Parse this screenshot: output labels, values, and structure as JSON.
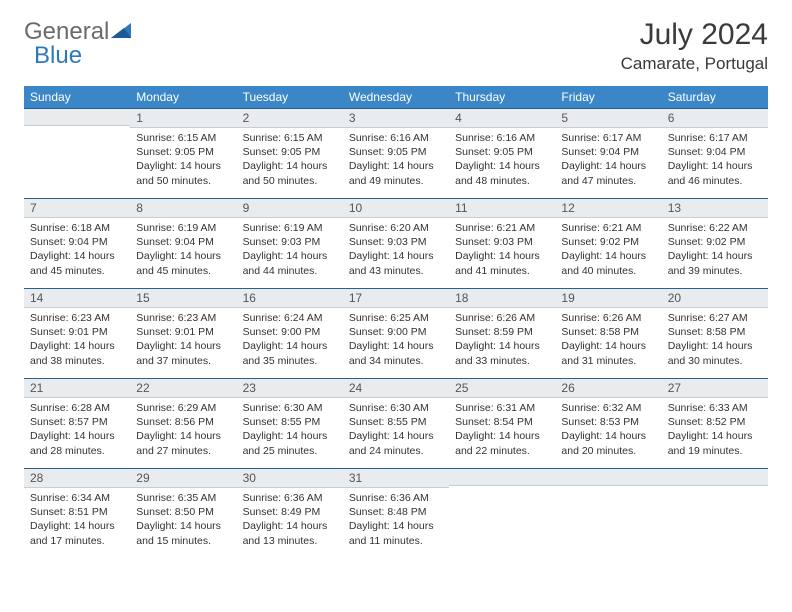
{
  "brand": {
    "part1": "General",
    "part2": "Blue"
  },
  "title": "July 2024",
  "location": "Camarate, Portugal",
  "colors": {
    "header_bg": "#3b86c6",
    "header_text": "#ffffff",
    "daynum_bg": "#e9ecef",
    "daynum_border_top": "#2e5f8a",
    "text": "#333333"
  },
  "weekdays": [
    "Sunday",
    "Monday",
    "Tuesday",
    "Wednesday",
    "Thursday",
    "Friday",
    "Saturday"
  ],
  "weeks": [
    [
      null,
      {
        "n": "1",
        "sr": "Sunrise: 6:15 AM",
        "ss": "Sunset: 9:05 PM",
        "d1": "Daylight: 14 hours",
        "d2": "and 50 minutes."
      },
      {
        "n": "2",
        "sr": "Sunrise: 6:15 AM",
        "ss": "Sunset: 9:05 PM",
        "d1": "Daylight: 14 hours",
        "d2": "and 50 minutes."
      },
      {
        "n": "3",
        "sr": "Sunrise: 6:16 AM",
        "ss": "Sunset: 9:05 PM",
        "d1": "Daylight: 14 hours",
        "d2": "and 49 minutes."
      },
      {
        "n": "4",
        "sr": "Sunrise: 6:16 AM",
        "ss": "Sunset: 9:05 PM",
        "d1": "Daylight: 14 hours",
        "d2": "and 48 minutes."
      },
      {
        "n": "5",
        "sr": "Sunrise: 6:17 AM",
        "ss": "Sunset: 9:04 PM",
        "d1": "Daylight: 14 hours",
        "d2": "and 47 minutes."
      },
      {
        "n": "6",
        "sr": "Sunrise: 6:17 AM",
        "ss": "Sunset: 9:04 PM",
        "d1": "Daylight: 14 hours",
        "d2": "and 46 minutes."
      }
    ],
    [
      {
        "n": "7",
        "sr": "Sunrise: 6:18 AM",
        "ss": "Sunset: 9:04 PM",
        "d1": "Daylight: 14 hours",
        "d2": "and 45 minutes."
      },
      {
        "n": "8",
        "sr": "Sunrise: 6:19 AM",
        "ss": "Sunset: 9:04 PM",
        "d1": "Daylight: 14 hours",
        "d2": "and 45 minutes."
      },
      {
        "n": "9",
        "sr": "Sunrise: 6:19 AM",
        "ss": "Sunset: 9:03 PM",
        "d1": "Daylight: 14 hours",
        "d2": "and 44 minutes."
      },
      {
        "n": "10",
        "sr": "Sunrise: 6:20 AM",
        "ss": "Sunset: 9:03 PM",
        "d1": "Daylight: 14 hours",
        "d2": "and 43 minutes."
      },
      {
        "n": "11",
        "sr": "Sunrise: 6:21 AM",
        "ss": "Sunset: 9:03 PM",
        "d1": "Daylight: 14 hours",
        "d2": "and 41 minutes."
      },
      {
        "n": "12",
        "sr": "Sunrise: 6:21 AM",
        "ss": "Sunset: 9:02 PM",
        "d1": "Daylight: 14 hours",
        "d2": "and 40 minutes."
      },
      {
        "n": "13",
        "sr": "Sunrise: 6:22 AM",
        "ss": "Sunset: 9:02 PM",
        "d1": "Daylight: 14 hours",
        "d2": "and 39 minutes."
      }
    ],
    [
      {
        "n": "14",
        "sr": "Sunrise: 6:23 AM",
        "ss": "Sunset: 9:01 PM",
        "d1": "Daylight: 14 hours",
        "d2": "and 38 minutes."
      },
      {
        "n": "15",
        "sr": "Sunrise: 6:23 AM",
        "ss": "Sunset: 9:01 PM",
        "d1": "Daylight: 14 hours",
        "d2": "and 37 minutes."
      },
      {
        "n": "16",
        "sr": "Sunrise: 6:24 AM",
        "ss": "Sunset: 9:00 PM",
        "d1": "Daylight: 14 hours",
        "d2": "and 35 minutes."
      },
      {
        "n": "17",
        "sr": "Sunrise: 6:25 AM",
        "ss": "Sunset: 9:00 PM",
        "d1": "Daylight: 14 hours",
        "d2": "and 34 minutes."
      },
      {
        "n": "18",
        "sr": "Sunrise: 6:26 AM",
        "ss": "Sunset: 8:59 PM",
        "d1": "Daylight: 14 hours",
        "d2": "and 33 minutes."
      },
      {
        "n": "19",
        "sr": "Sunrise: 6:26 AM",
        "ss": "Sunset: 8:58 PM",
        "d1": "Daylight: 14 hours",
        "d2": "and 31 minutes."
      },
      {
        "n": "20",
        "sr": "Sunrise: 6:27 AM",
        "ss": "Sunset: 8:58 PM",
        "d1": "Daylight: 14 hours",
        "d2": "and 30 minutes."
      }
    ],
    [
      {
        "n": "21",
        "sr": "Sunrise: 6:28 AM",
        "ss": "Sunset: 8:57 PM",
        "d1": "Daylight: 14 hours",
        "d2": "and 28 minutes."
      },
      {
        "n": "22",
        "sr": "Sunrise: 6:29 AM",
        "ss": "Sunset: 8:56 PM",
        "d1": "Daylight: 14 hours",
        "d2": "and 27 minutes."
      },
      {
        "n": "23",
        "sr": "Sunrise: 6:30 AM",
        "ss": "Sunset: 8:55 PM",
        "d1": "Daylight: 14 hours",
        "d2": "and 25 minutes."
      },
      {
        "n": "24",
        "sr": "Sunrise: 6:30 AM",
        "ss": "Sunset: 8:55 PM",
        "d1": "Daylight: 14 hours",
        "d2": "and 24 minutes."
      },
      {
        "n": "25",
        "sr": "Sunrise: 6:31 AM",
        "ss": "Sunset: 8:54 PM",
        "d1": "Daylight: 14 hours",
        "d2": "and 22 minutes."
      },
      {
        "n": "26",
        "sr": "Sunrise: 6:32 AM",
        "ss": "Sunset: 8:53 PM",
        "d1": "Daylight: 14 hours",
        "d2": "and 20 minutes."
      },
      {
        "n": "27",
        "sr": "Sunrise: 6:33 AM",
        "ss": "Sunset: 8:52 PM",
        "d1": "Daylight: 14 hours",
        "d2": "and 19 minutes."
      }
    ],
    [
      {
        "n": "28",
        "sr": "Sunrise: 6:34 AM",
        "ss": "Sunset: 8:51 PM",
        "d1": "Daylight: 14 hours",
        "d2": "and 17 minutes."
      },
      {
        "n": "29",
        "sr": "Sunrise: 6:35 AM",
        "ss": "Sunset: 8:50 PM",
        "d1": "Daylight: 14 hours",
        "d2": "and 15 minutes."
      },
      {
        "n": "30",
        "sr": "Sunrise: 6:36 AM",
        "ss": "Sunset: 8:49 PM",
        "d1": "Daylight: 14 hours",
        "d2": "and 13 minutes."
      },
      {
        "n": "31",
        "sr": "Sunrise: 6:36 AM",
        "ss": "Sunset: 8:48 PM",
        "d1": "Daylight: 14 hours",
        "d2": "and 11 minutes."
      },
      null,
      null,
      null
    ]
  ]
}
